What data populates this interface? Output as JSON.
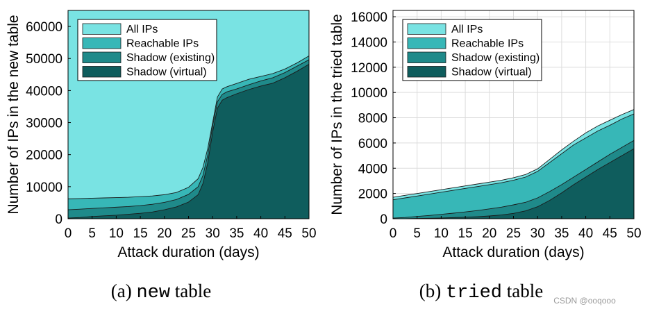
{
  "colors": {
    "all_ips": "#79e3e3",
    "reachable_ips": "#37b7b7",
    "shadow_existing": "#1f8a8a",
    "shadow_virtual": "#0f5d5d",
    "grid": "#dcdcdc",
    "axis": "#000000"
  },
  "chart_data": [
    {
      "type": "area",
      "id": "a",
      "x": [
        0,
        2.5,
        5,
        7.5,
        10,
        12.5,
        15,
        17.5,
        20,
        22.5,
        25,
        27,
        28,
        29,
        30,
        31,
        32,
        33,
        35,
        37.5,
        40,
        42.5,
        45,
        47.5,
        50
      ],
      "series": [
        {
          "name": "All IPs",
          "values": [
            65000,
            65000,
            65000,
            65000,
            65000,
            65000,
            65000,
            65000,
            65000,
            65000,
            65000,
            65000,
            65000,
            65000,
            65000,
            65000,
            65000,
            65000,
            65000,
            65000,
            65000,
            65000,
            65000,
            65000,
            65000
          ]
        },
        {
          "name": "Reachable IPs",
          "values": [
            6200,
            6300,
            6400,
            6500,
            6600,
            6700,
            6900,
            7100,
            7500,
            8200,
            9800,
            12500,
            16000,
            22000,
            30000,
            38000,
            40500,
            41200,
            42200,
            43500,
            44400,
            45300,
            46700,
            48600,
            50800
          ]
        },
        {
          "name": "Shadow (existing)",
          "values": [
            2800,
            3000,
            3200,
            3400,
            3600,
            3800,
            4100,
            4500,
            5100,
            6000,
            7600,
            10000,
            13500,
            20000,
            29000,
            36500,
            38800,
            39600,
            40500,
            41800,
            43000,
            44000,
            45600,
            47600,
            49600
          ]
        },
        {
          "name": "Shadow (virtual)",
          "values": [
            200,
            400,
            700,
            900,
            1100,
            1400,
            1700,
            2100,
            2800,
            3700,
            5200,
            7500,
            11000,
            17500,
            27000,
            34500,
            37000,
            37800,
            39000,
            40300,
            41400,
            42300,
            44000,
            46000,
            48200
          ]
        }
      ],
      "ylim": [
        0,
        65000
      ],
      "xlim": [
        0,
        50
      ],
      "xticks": [
        0,
        5,
        10,
        15,
        20,
        25,
        30,
        35,
        40,
        45,
        50
      ],
      "yticks": [
        0,
        10000,
        20000,
        30000,
        40000,
        50000,
        60000
      ],
      "xlabel": "Attack duration (days)",
      "ylabel": "Number of IPs in the new table",
      "legend": [
        "All IPs",
        "Reachable IPs",
        "Shadow (existing)",
        "Shadow (virtual)"
      ],
      "legend_position": "top-left",
      "grid": true
    },
    {
      "type": "area",
      "id": "b",
      "x": [
        0,
        2.5,
        5,
        7.5,
        10,
        12.5,
        15,
        17.5,
        20,
        22.5,
        25,
        27.5,
        30,
        32.5,
        35,
        37.5,
        40,
        42.5,
        45,
        47.5,
        50
      ],
      "series": [
        {
          "name": "All IPs",
          "values": [
            1700,
            1850,
            2000,
            2150,
            2300,
            2450,
            2600,
            2750,
            2900,
            3050,
            3250,
            3500,
            3950,
            4700,
            5450,
            6150,
            6800,
            7350,
            7800,
            8250,
            8650
          ]
        },
        {
          "name": "Reachable IPs",
          "values": [
            1500,
            1650,
            1800,
            1950,
            2100,
            2250,
            2400,
            2550,
            2700,
            2850,
            3050,
            3300,
            3750,
            4450,
            5150,
            5850,
            6400,
            6950,
            7400,
            7900,
            8300
          ]
        },
        {
          "name": "Shadow (existing)",
          "values": [
            50,
            100,
            180,
            260,
            350,
            440,
            540,
            650,
            780,
            920,
            1100,
            1300,
            1650,
            2150,
            2700,
            3300,
            3900,
            4500,
            5100,
            5650,
            6200
          ]
        },
        {
          "name": "Shadow (virtual)",
          "values": [
            0,
            0,
            20,
            40,
            60,
            90,
            120,
            160,
            220,
            300,
            420,
            620,
            950,
            1450,
            2050,
            2700,
            3300,
            3900,
            4450,
            5000,
            5550
          ]
        }
      ],
      "ylim": [
        0,
        16500
      ],
      "xlim": [
        0,
        50
      ],
      "xticks": [
        0,
        5,
        10,
        15,
        20,
        25,
        30,
        35,
        40,
        45,
        50
      ],
      "yticks": [
        0,
        2000,
        4000,
        6000,
        8000,
        10000,
        12000,
        14000,
        16000
      ],
      "xlabel": "Attack duration (days)",
      "ylabel": "Number of IPs in the tried table",
      "legend": [
        "All IPs",
        "Reachable IPs",
        "Shadow (existing)",
        "Shadow (virtual)"
      ],
      "legend_position": "top-left",
      "grid": true
    }
  ],
  "captions": [
    {
      "prefix": "(a) ",
      "code": "new",
      "suffix": " table"
    },
    {
      "prefix": "(b) ",
      "code": "tried",
      "suffix": " table"
    }
  ],
  "watermark": "CSDN @ooqooo"
}
